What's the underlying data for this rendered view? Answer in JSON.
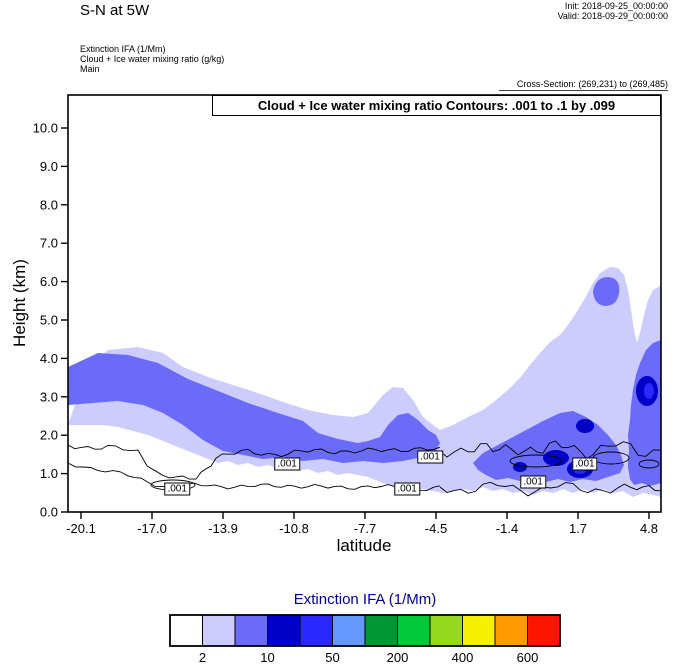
{
  "header": {
    "title": "S-N at 5W",
    "init": "Init: 2018-09-25_00:00:00",
    "valid": "Valid: 2018-09-29_00:00:00",
    "field_lines": [
      "Extinction IFA  (1/Mm)",
      "Cloud + Ice water mixing ratio  (g/kg)",
      "Main"
    ],
    "cross_section": "Cross-Section: (269,231) to (269,485)"
  },
  "chart_data": {
    "type": "filled_contour_cross_section",
    "title": "Cloud + Ice water mixing ratio Contours: .001 to .1 by .099",
    "xlabel": "latitude",
    "ylabel": "Height (km)",
    "x_ticks": [
      "-20.1",
      "-17.0",
      "-13.9",
      "-10.8",
      "-7.7",
      "-4.5",
      "-1.4",
      "1.7",
      "4.8"
    ],
    "y_ticks": [
      "0.0",
      "1.0",
      "2.0",
      "3.0",
      "4.0",
      "5.0",
      "6.0",
      "7.0",
      "8.0",
      "9.0",
      "10.0"
    ],
    "ylim": [
      0,
      10.8
    ],
    "xlim": [
      -20.7,
      5.3
    ],
    "line_contours": {
      "variable": "Cloud + Ice water mixing ratio (g/kg)",
      "levels": [
        0.001,
        0.1
      ],
      "label": ".001",
      "label_points": [
        {
          "lat": -15.9,
          "km": 0.6
        },
        {
          "lat": -11.1,
          "km": 1.25
        },
        {
          "lat": -5.86,
          "km": 0.6
        },
        {
          "lat": -4.86,
          "km": 1.43
        },
        {
          "lat": -0.36,
          "km": 0.78
        },
        {
          "lat": 1.9,
          "km": 1.25
        }
      ]
    },
    "fill_variable": "Extinction IFA (1/Mm)",
    "colorbar": {
      "title": "Extinction IFA (1/Mm)",
      "colors": [
        "#ffffff",
        "#ccccff",
        "#6b6bfa",
        "#0000c8",
        "#2828ff",
        "#6699ff",
        "#009632",
        "#00c838",
        "#96d91e",
        "#f5f000",
        "#ff9b00",
        "#ff1400"
      ],
      "labels": [
        {
          "text": "2",
          "boundary": 1
        },
        {
          "text": "10",
          "boundary": 3
        },
        {
          "text": "50",
          "boundary": 5
        },
        {
          "text": "200",
          "boundary": 7
        },
        {
          "text": "400",
          "boundary": 9
        },
        {
          "text": "600",
          "boundary": 11
        }
      ]
    }
  }
}
